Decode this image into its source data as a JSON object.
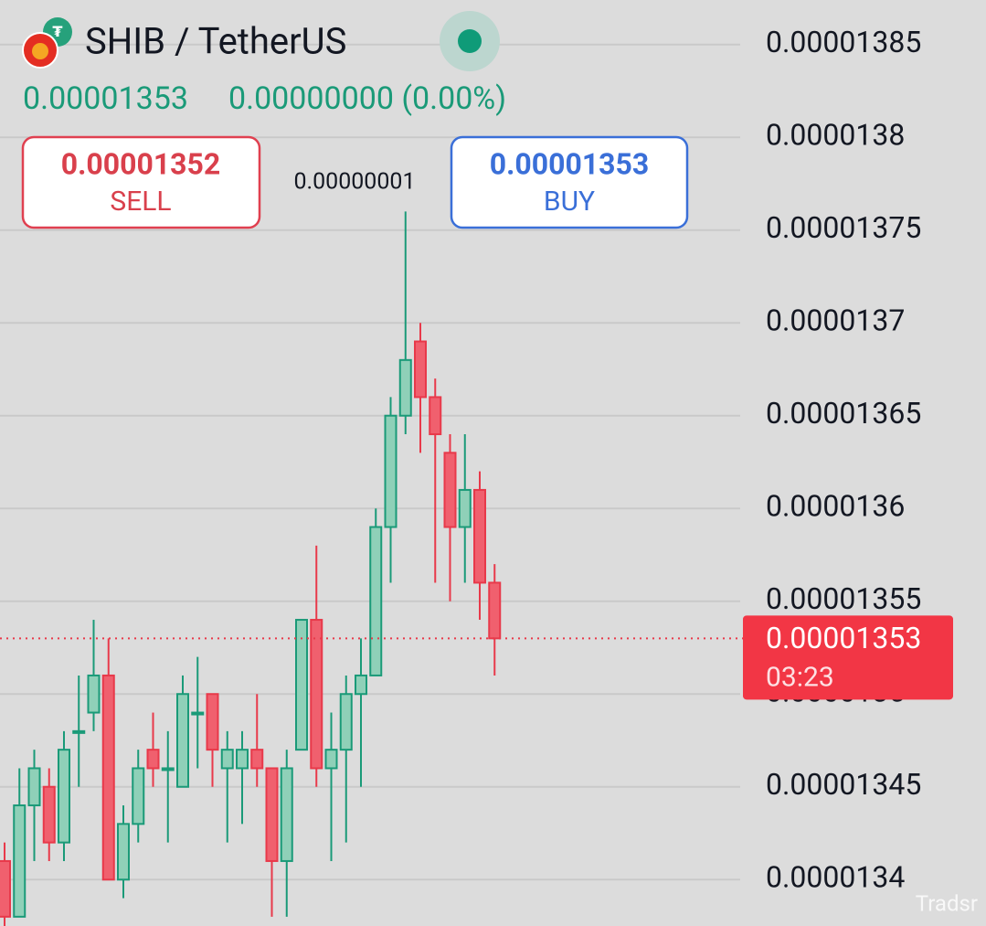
{
  "chart_data": {
    "type": "candlestick",
    "title": "SHIB / TetherUS",
    "price": "0.00001353",
    "change": "0.00000000 (0.00%)",
    "sell_price": "0.00001352",
    "sell_label": "SELL",
    "buy_price": "0.00001353",
    "buy_label": "BUY",
    "spread": "0.00000001",
    "watermark": "Tradsr",
    "countdown": "03:23",
    "last_price": 1.353e-05,
    "up_color": "#1a9a78",
    "down_color": "#e8394a",
    "grid": true,
    "ylim": [
      1.3375e-05,
      1.3874e-05
    ],
    "yticks": [
      1.34e-05,
      1.345e-05,
      1.35e-05,
      1.355e-05,
      1.36e-05,
      1.365e-05,
      1.37e-05,
      1.375e-05,
      1.38e-05,
      1.385e-05
    ],
    "open": [
      1.341e-05,
      1.338e-05,
      1.344e-05,
      1.345e-05,
      1.342e-05,
      1.348e-05,
      1.349e-05,
      1.351e-05,
      1.34e-05,
      1.343e-05,
      1.347e-05,
      1.346e-05,
      1.345e-05,
      1.349e-05,
      1.35e-05,
      1.346e-05,
      1.346e-05,
      1.347e-05,
      1.346e-05,
      1.341e-05,
      1.347e-05,
      1.354e-05,
      1.346e-05,
      1.347e-05,
      1.35e-05,
      1.351e-05,
      1.359e-05,
      1.365e-05,
      1.369e-05,
      1.366e-05,
      1.363e-05,
      1.359e-05,
      1.361e-05,
      1.356e-05
    ],
    "high": [
      1.342e-05,
      1.346e-05,
      1.347e-05,
      1.346e-05,
      1.348e-05,
      1.351e-05,
      1.354e-05,
      1.353e-05,
      1.344e-05,
      1.347e-05,
      1.349e-05,
      1.348e-05,
      1.351e-05,
      1.352e-05,
      1.35e-05,
      1.348e-05,
      1.348e-05,
      1.35e-05,
      1.346e-05,
      1.347e-05,
      1.354e-05,
      1.358e-05,
      1.349e-05,
      1.351e-05,
      1.353e-05,
      1.36e-05,
      1.366e-05,
      1.376e-05,
      1.37e-05,
      1.367e-05,
      1.364e-05,
      1.364e-05,
      1.362e-05,
      1.357e-05
    ],
    "low": [
      1.337e-05,
      1.338e-05,
      1.341e-05,
      1.341e-05,
      1.341e-05,
      1.345e-05,
      1.348e-05,
      1.34e-05,
      1.339e-05,
      1.342e-05,
      1.345e-05,
      1.342e-05,
      1.345e-05,
      1.346e-05,
      1.345e-05,
      1.342e-05,
      1.343e-05,
      1.345e-05,
      1.338e-05,
      1.338e-05,
      1.347e-05,
      1.345e-05,
      1.341e-05,
      1.342e-05,
      1.345e-05,
      1.351e-05,
      1.356e-05,
      1.364e-05,
      1.363e-05,
      1.356e-05,
      1.355e-05,
      1.356e-05,
      1.354e-05,
      1.351e-05
    ],
    "close": [
      1.338e-05,
      1.344e-05,
      1.346e-05,
      1.342e-05,
      1.347e-05,
      1.348e-05,
      1.351e-05,
      1.34e-05,
      1.343e-05,
      1.346e-05,
      1.346e-05,
      1.346e-05,
      1.35e-05,
      1.349e-05,
      1.347e-05,
      1.347e-05,
      1.347e-05,
      1.346e-05,
      1.341e-05,
      1.346e-05,
      1.354e-05,
      1.346e-05,
      1.347e-05,
      1.35e-05,
      1.351e-05,
      1.359e-05,
      1.365e-05,
      1.368e-05,
      1.366e-05,
      1.364e-05,
      1.359e-05,
      1.361e-05,
      1.356e-05,
      1.353e-05
    ]
  }
}
